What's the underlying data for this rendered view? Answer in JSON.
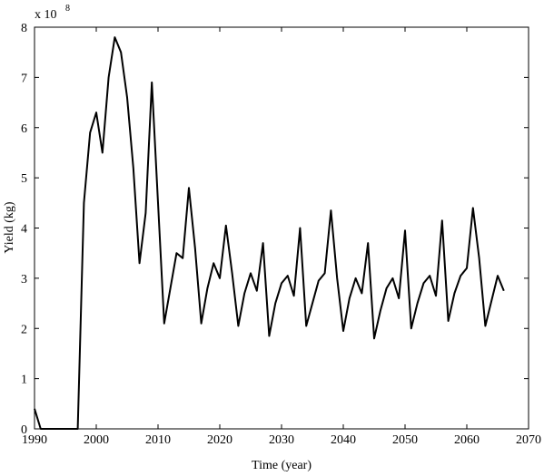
{
  "chart_data": {
    "type": "line",
    "xlabel": "Time (year)",
    "ylabel": "Yield (kg)",
    "multiplier": {
      "base": "x 10",
      "exponent": "8"
    },
    "x": [
      1990,
      1991,
      1992,
      1993,
      1994,
      1995,
      1996,
      1997,
      1998,
      1999,
      2000,
      2001,
      2002,
      2003,
      2004,
      2005,
      2006,
      2007,
      2008,
      2009,
      2010,
      2011,
      2012,
      2013,
      2014,
      2015,
      2016,
      2017,
      2018,
      2019,
      2020,
      2021,
      2022,
      2023,
      2024,
      2025,
      2026,
      2027,
      2028,
      2029,
      2030,
      2031,
      2032,
      2033,
      2034,
      2035,
      2036,
      2037,
      2038,
      2039,
      2040,
      2041,
      2042,
      2043,
      2044,
      2045,
      2046,
      2047,
      2048,
      2049,
      2050,
      2051,
      2052,
      2053,
      2054,
      2055,
      2056,
      2057,
      2058,
      2059,
      2060,
      2061,
      2062,
      2063,
      2064,
      2065,
      2066
    ],
    "series": [
      {
        "color": "#000000",
        "values": [
          0.4,
          0,
          0,
          0,
          0,
          0,
          0,
          0,
          4.5,
          5.9,
          6.3,
          5.5,
          7.0,
          7.8,
          7.5,
          6.6,
          5.2,
          3.3,
          4.3,
          6.9,
          4.5,
          2.1,
          2.8,
          3.5,
          3.4,
          4.8,
          3.6,
          2.1,
          2.8,
          3.3,
          3.0,
          4.05,
          3.1,
          2.05,
          2.7,
          3.1,
          2.75,
          3.7,
          1.85,
          2.5,
          2.9,
          3.05,
          2.65,
          4.0,
          2.05,
          2.5,
          2.95,
          3.1,
          4.35,
          3.0,
          1.95,
          2.6,
          3.0,
          2.7,
          3.7,
          1.8,
          2.35,
          2.8,
          3.0,
          2.6,
          3.95,
          2.0,
          2.5,
          2.9,
          3.05,
          2.65,
          4.15,
          2.15,
          2.7,
          3.05,
          3.2,
          4.4,
          3.4,
          2.05,
          2.55,
          3.05,
          2.75
        ]
      }
    ],
    "xlim": [
      1990,
      2070
    ],
    "xticks": [
      1990,
      2000,
      2010,
      2020,
      2030,
      2040,
      2050,
      2060,
      2070
    ],
    "ylim": [
      0,
      8
    ],
    "yticks": [
      0,
      1,
      2,
      3,
      4,
      5,
      6,
      7,
      8
    ],
    "grid": false
  }
}
